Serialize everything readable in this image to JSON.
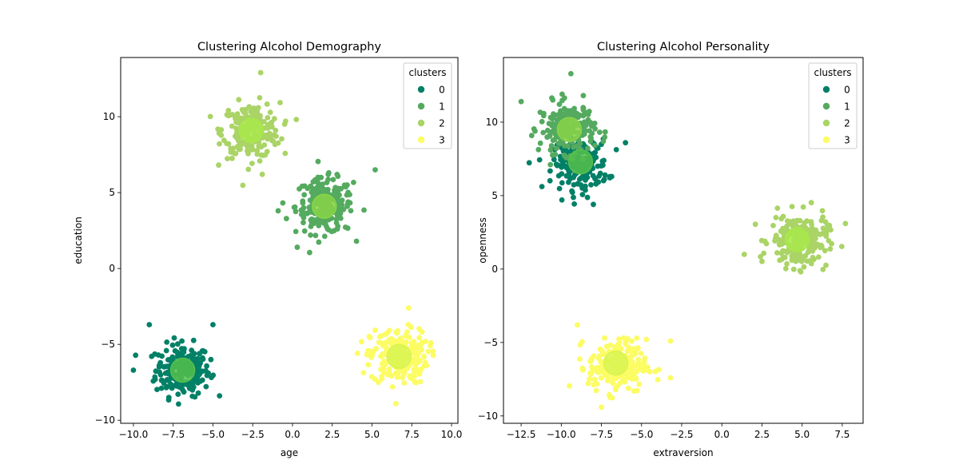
{
  "chart_data": [
    {
      "type": "scatter",
      "title": "Clustering Alcohol Demography",
      "xlabel": "age",
      "ylabel": "education",
      "xlim": [
        -10.8,
        10.4
      ],
      "ylim": [
        -10.2,
        13.9
      ],
      "xticks": [
        -10.0,
        -7.5,
        -5.0,
        -2.5,
        0.0,
        2.5,
        5.0,
        7.5,
        10.0
      ],
      "xtick_labels": [
        "−10.0",
        "−7.5",
        "−5.0",
        "−2.5",
        "0.0",
        "2.5",
        "5.0",
        "7.5",
        "10.0"
      ],
      "yticks": [
        -10,
        -5,
        0,
        5,
        10
      ],
      "ytick_labels": [
        "−10",
        "−5",
        "0",
        "5",
        "10"
      ],
      "grid": false,
      "legend": {
        "title": "clusters",
        "placement": "top-right",
        "entries": [
          "0",
          "1",
          "2",
          "3"
        ]
      },
      "series": [
        {
          "name": "0",
          "color": "#008066",
          "center": [
            -6.9,
            -6.7
          ],
          "spread": 0.85,
          "count": 220
        },
        {
          "name": "1",
          "color": "#54aa5f",
          "center": [
            2.0,
            4.1
          ],
          "spread": 0.9,
          "count": 220
        },
        {
          "name": "2",
          "color": "#aad466",
          "center": [
            -2.6,
            9.1
          ],
          "spread": 0.9,
          "count": 220
        },
        {
          "name": "3",
          "color": "#fcfc64",
          "center": [
            6.7,
            -5.8
          ],
          "spread": 0.9,
          "count": 220
        }
      ],
      "centroids": [
        [
          -6.9,
          -6.7
        ],
        [
          2.0,
          4.1
        ],
        [
          -2.6,
          9.1
        ],
        [
          6.7,
          -5.8
        ]
      ],
      "centroid_colors": [
        "#55c04b",
        "#88d448",
        "#a8e84a",
        "#d8f450"
      ],
      "outliers": [
        [
          -2.0,
          12.9
        ],
        [
          5.2,
          6.5
        ],
        [
          -9.0,
          -3.7
        ],
        [
          -5.0,
          -3.7
        ],
        [
          -10.0,
          -6.7
        ],
        [
          7.3,
          -2.6
        ],
        [
          6.5,
          -8.9
        ],
        [
          -1.9,
          6.2
        ],
        [
          -0.9,
          3.8
        ],
        [
          0.3,
          1.4
        ]
      ]
    },
    {
      "type": "scatter",
      "title": "Clustering Alcohol Personality",
      "xlabel": "extraversion",
      "ylabel": "openness",
      "xlim": [
        -13.6,
        8.8
      ],
      "ylim": [
        -10.5,
        14.4
      ],
      "xticks": [
        -12.5,
        -10.0,
        -7.5,
        -5.0,
        -2.5,
        0.0,
        2.5,
        5.0,
        7.5
      ],
      "xtick_labels": [
        "−12.5",
        "−10.0",
        "−7.5",
        "−5.0",
        "−2.5",
        "0.0",
        "2.5",
        "5.0",
        "7.5"
      ],
      "yticks": [
        -10,
        -5,
        0,
        5,
        10
      ],
      "ytick_labels": [
        "−10",
        "−5",
        "0",
        "5",
        "10"
      ],
      "grid": false,
      "legend": {
        "title": "clusters",
        "placement": "top-right",
        "entries": [
          "0",
          "1",
          "2",
          "3"
        ]
      },
      "series": [
        {
          "name": "0",
          "color": "#008066",
          "center": [
            -8.8,
            7.1
          ],
          "spread": 0.85,
          "count": 200
        },
        {
          "name": "1",
          "color": "#54aa5f",
          "center": [
            -9.6,
            9.6
          ],
          "spread": 0.85,
          "count": 200
        },
        {
          "name": "2",
          "color": "#aad466",
          "center": [
            4.8,
            1.9
          ],
          "spread": 0.9,
          "count": 220
        },
        {
          "name": "3",
          "color": "#fcfc64",
          "center": [
            -6.5,
            -6.6
          ],
          "spread": 0.9,
          "count": 220
        }
      ],
      "centroids": [
        [
          -8.8,
          7.3
        ],
        [
          -9.5,
          9.5
        ],
        [
          4.7,
          2.0
        ],
        [
          -6.6,
          -6.4
        ]
      ],
      "centroid_colors": [
        "#55c04b",
        "#88d448",
        "#a8e84a",
        "#d8f450"
      ],
      "outliers": [
        [
          -9.4,
          13.3
        ],
        [
          -12.5,
          11.4
        ],
        [
          -6.0,
          8.6
        ],
        [
          -8.0,
          4.4
        ],
        [
          1.4,
          1.0
        ],
        [
          7.7,
          3.1
        ],
        [
          -9.0,
          -3.8
        ],
        [
          -3.2,
          -4.9
        ],
        [
          -3.2,
          -7.4
        ],
        [
          -7.5,
          -9.4
        ]
      ]
    }
  ]
}
